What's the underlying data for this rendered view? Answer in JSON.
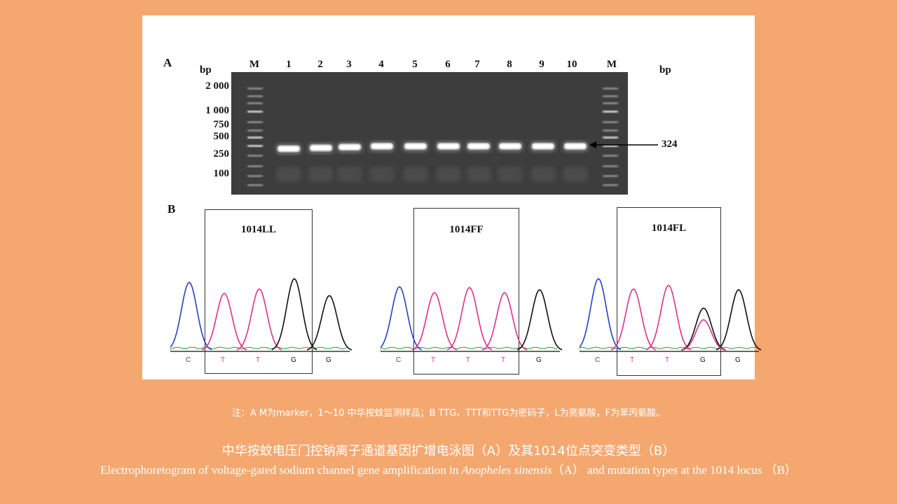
{
  "panel_a": {
    "label": "A",
    "bp_left": "bp",
    "bp_right": "bp",
    "lanes": [
      "M",
      "1",
      "2",
      "3",
      "4",
      "5",
      "6",
      "7",
      "8",
      "9",
      "10",
      "M"
    ],
    "size_labels": [
      "2 000",
      "1 000",
      "750",
      "500",
      "250",
      "100"
    ],
    "product_size": "324"
  },
  "panel_b": {
    "label": "B",
    "genotypes": [
      {
        "name": "1014LL",
        "bases": [
          "C",
          "T",
          "T",
          "G",
          "G"
        ]
      },
      {
        "name": "1014FF",
        "bases": [
          "C",
          "T",
          "T",
          "T",
          "G"
        ]
      },
      {
        "name": "1014FL",
        "bases": [
          "C",
          "T",
          "T",
          "G",
          "G"
        ]
      }
    ]
  },
  "colors": {
    "C": "#2b3fc4",
    "T": "#e0308a",
    "G": "#111111",
    "A": "#2a9a3a"
  },
  "note": "注：A  M为marker，1～10  中华按蚊监测样品；B TTG、TTT和TTG为密码子，L为亮氨酸，F为苯丙氨酸。",
  "caption": {
    "cn": "中华按蚊电压门控钠离子通道基因扩增电泳图（A）及其1014位点突变类型（B）",
    "en_before": "Electrophoretogram of voltage-gated sodium channel gene amplification in ",
    "en_species": "Anopheles sinensis",
    "en_after": "（A） and mutation types at the 1014 locus （B）"
  }
}
